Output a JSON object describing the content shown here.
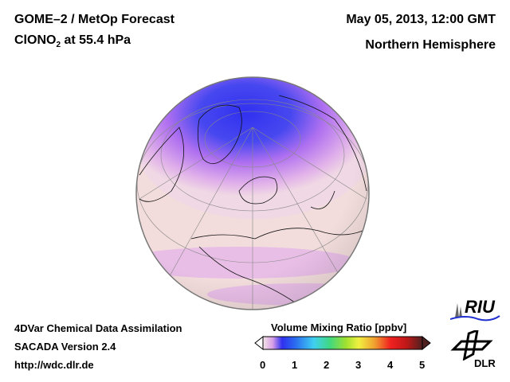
{
  "header": {
    "title_line1": "GOME–2 / MetOp Forecast",
    "species": "ClONO",
    "species_sub": "2",
    "level": " at 55.4 hPa",
    "datetime": "May 05, 2013, 12:00 GMT",
    "region": "Northern Hemisphere"
  },
  "footer": {
    "line1": "4DVar Chemical Data Assimilation",
    "line2": "SACADA Version 2.4",
    "line3": "http://wdc.dlr.de"
  },
  "colorbar": {
    "title": "Volume Mixing Ratio [ppbv]",
    "ticks": [
      "0",
      "1",
      "2",
      "3",
      "4",
      "5"
    ],
    "range": [
      0,
      5
    ],
    "colors": [
      "#f4e6e6",
      "#d9a0e6",
      "#8a4af0",
      "#2040f0",
      "#2a7af0",
      "#40c8f0",
      "#40e0b0",
      "#40d040",
      "#b0e030",
      "#f0f040",
      "#f0a030",
      "#f02020",
      "#c01818",
      "#502020"
    ]
  },
  "logos": {
    "riu": "RIU",
    "dlr": "DLR"
  },
  "map": {
    "background_color": "#f2dcdc",
    "low_color": "#e6b4ee",
    "polar_color": "#3c3cf0"
  }
}
